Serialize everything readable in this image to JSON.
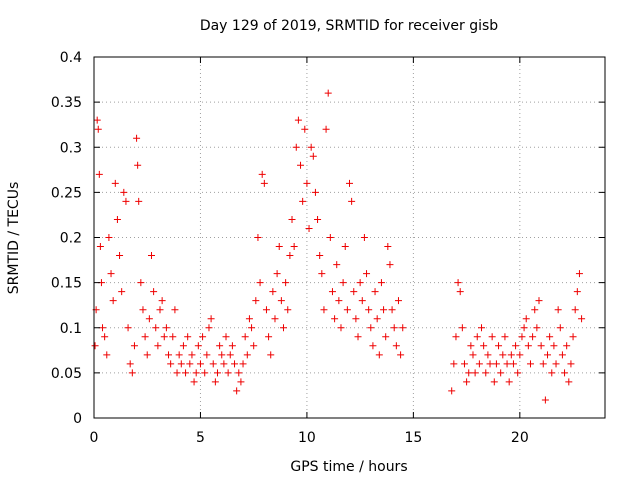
{
  "chart_data": {
    "type": "scatter",
    "title": "Day 129 of 2019, SRMTID for receiver gisb",
    "xlabel": "GPS time / hours",
    "ylabel": "SRMTID / TECUs",
    "xlim": [
      0,
      24
    ],
    "ylim": [
      0,
      0.4
    ],
    "x_ticks": [
      0,
      5,
      10,
      15,
      20
    ],
    "x_tick_labels": [
      "0",
      "5",
      "10",
      "15",
      "20"
    ],
    "y_ticks": [
      0,
      0.05,
      0.1,
      0.15,
      0.2,
      0.25,
      0.3,
      0.35,
      0.4
    ],
    "y_tick_labels": [
      "0",
      "0.05",
      "0.1",
      "0.15",
      "0.2",
      "0.25",
      "0.3",
      "0.35",
      "0.4"
    ],
    "grid": true,
    "marker": "plus",
    "color": "#ee0000",
    "data_gap_hours": [
      14.5,
      16.8
    ],
    "series": [
      {
        "name": "SRMTID",
        "points": [
          [
            0.05,
            0.08
          ],
          [
            0.1,
            0.12
          ],
          [
            0.15,
            0.33
          ],
          [
            0.2,
            0.32
          ],
          [
            0.25,
            0.27
          ],
          [
            0.3,
            0.19
          ],
          [
            0.35,
            0.15
          ],
          [
            0.4,
            0.1
          ],
          [
            0.5,
            0.09
          ],
          [
            0.6,
            0.07
          ],
          [
            0.7,
            0.2
          ],
          [
            0.8,
            0.16
          ],
          [
            0.9,
            0.13
          ],
          [
            1.0,
            0.26
          ],
          [
            1.1,
            0.22
          ],
          [
            1.2,
            0.18
          ],
          [
            1.3,
            0.14
          ],
          [
            1.4,
            0.25
          ],
          [
            1.5,
            0.24
          ],
          [
            1.6,
            0.1
          ],
          [
            1.7,
            0.06
          ],
          [
            1.8,
            0.05
          ],
          [
            1.9,
            0.08
          ],
          [
            2.0,
            0.31
          ],
          [
            2.05,
            0.28
          ],
          [
            2.1,
            0.24
          ],
          [
            2.2,
            0.15
          ],
          [
            2.3,
            0.12
          ],
          [
            2.4,
            0.09
          ],
          [
            2.5,
            0.07
          ],
          [
            2.6,
            0.11
          ],
          [
            2.7,
            0.18
          ],
          [
            2.8,
            0.14
          ],
          [
            2.9,
            0.1
          ],
          [
            3.0,
            0.08
          ],
          [
            3.1,
            0.12
          ],
          [
            3.2,
            0.13
          ],
          [
            3.3,
            0.09
          ],
          [
            3.4,
            0.1
          ],
          [
            3.5,
            0.07
          ],
          [
            3.6,
            0.06
          ],
          [
            3.7,
            0.09
          ],
          [
            3.8,
            0.12
          ],
          [
            3.9,
            0.05
          ],
          [
            4.0,
            0.07
          ],
          [
            4.1,
            0.06
          ],
          [
            4.2,
            0.08
          ],
          [
            4.3,
            0.05
          ],
          [
            4.4,
            0.09
          ],
          [
            4.5,
            0.06
          ],
          [
            4.6,
            0.07
          ],
          [
            4.7,
            0.04
          ],
          [
            4.8,
            0.05
          ],
          [
            4.9,
            0.08
          ],
          [
            5.0,
            0.06
          ],
          [
            5.1,
            0.09
          ],
          [
            5.2,
            0.05
          ],
          [
            5.3,
            0.07
          ],
          [
            5.4,
            0.1
          ],
          [
            5.5,
            0.11
          ],
          [
            5.6,
            0.06
          ],
          [
            5.7,
            0.04
          ],
          [
            5.8,
            0.05
          ],
          [
            5.9,
            0.08
          ],
          [
            6.0,
            0.07
          ],
          [
            6.1,
            0.06
          ],
          [
            6.2,
            0.09
          ],
          [
            6.3,
            0.05
          ],
          [
            6.4,
            0.07
          ],
          [
            6.5,
            0.08
          ],
          [
            6.6,
            0.06
          ],
          [
            6.7,
            0.03
          ],
          [
            6.8,
            0.05
          ],
          [
            6.9,
            0.04
          ],
          [
            7.0,
            0.06
          ],
          [
            7.1,
            0.09
          ],
          [
            7.2,
            0.07
          ],
          [
            7.3,
            0.11
          ],
          [
            7.4,
            0.1
          ],
          [
            7.5,
            0.08
          ],
          [
            7.6,
            0.13
          ],
          [
            7.7,
            0.2
          ],
          [
            7.8,
            0.15
          ],
          [
            7.9,
            0.27
          ],
          [
            8.0,
            0.26
          ],
          [
            8.1,
            0.12
          ],
          [
            8.2,
            0.09
          ],
          [
            8.3,
            0.07
          ],
          [
            8.4,
            0.14
          ],
          [
            8.5,
            0.11
          ],
          [
            8.6,
            0.16
          ],
          [
            8.7,
            0.19
          ],
          [
            8.8,
            0.13
          ],
          [
            8.9,
            0.1
          ],
          [
            9.0,
            0.15
          ],
          [
            9.1,
            0.12
          ],
          [
            9.2,
            0.18
          ],
          [
            9.3,
            0.22
          ],
          [
            9.4,
            0.19
          ],
          [
            9.5,
            0.3
          ],
          [
            9.6,
            0.33
          ],
          [
            9.7,
            0.28
          ],
          [
            9.8,
            0.24
          ],
          [
            9.9,
            0.32
          ],
          [
            10.0,
            0.26
          ],
          [
            10.1,
            0.21
          ],
          [
            10.2,
            0.3
          ],
          [
            10.3,
            0.29
          ],
          [
            10.4,
            0.25
          ],
          [
            10.5,
            0.22
          ],
          [
            10.6,
            0.18
          ],
          [
            10.7,
            0.16
          ],
          [
            10.8,
            0.12
          ],
          [
            10.9,
            0.32
          ],
          [
            11.0,
            0.36
          ],
          [
            11.1,
            0.2
          ],
          [
            11.2,
            0.14
          ],
          [
            11.3,
            0.11
          ],
          [
            11.4,
            0.17
          ],
          [
            11.5,
            0.13
          ],
          [
            11.6,
            0.1
          ],
          [
            11.7,
            0.15
          ],
          [
            11.8,
            0.19
          ],
          [
            11.9,
            0.12
          ],
          [
            12.0,
            0.26
          ],
          [
            12.1,
            0.24
          ],
          [
            12.2,
            0.14
          ],
          [
            12.3,
            0.11
          ],
          [
            12.4,
            0.09
          ],
          [
            12.5,
            0.15
          ],
          [
            12.6,
            0.13
          ],
          [
            12.7,
            0.2
          ],
          [
            12.8,
            0.16
          ],
          [
            12.9,
            0.12
          ],
          [
            13.0,
            0.1
          ],
          [
            13.1,
            0.08
          ],
          [
            13.2,
            0.14
          ],
          [
            13.3,
            0.11
          ],
          [
            13.4,
            0.07
          ],
          [
            13.5,
            0.15
          ],
          [
            13.6,
            0.12
          ],
          [
            13.7,
            0.09
          ],
          [
            13.8,
            0.19
          ],
          [
            13.9,
            0.17
          ],
          [
            14.0,
            0.12
          ],
          [
            14.1,
            0.1
          ],
          [
            14.2,
            0.08
          ],
          [
            14.3,
            0.13
          ],
          [
            14.4,
            0.07
          ],
          [
            14.5,
            0.1
          ],
          [
            16.8,
            0.03
          ],
          [
            16.9,
            0.06
          ],
          [
            17.0,
            0.09
          ],
          [
            17.1,
            0.15
          ],
          [
            17.2,
            0.14
          ],
          [
            17.3,
            0.1
          ],
          [
            17.4,
            0.06
          ],
          [
            17.5,
            0.04
          ],
          [
            17.6,
            0.05
          ],
          [
            17.7,
            0.08
          ],
          [
            17.8,
            0.07
          ],
          [
            17.9,
            0.05
          ],
          [
            18.0,
            0.09
          ],
          [
            18.1,
            0.06
          ],
          [
            18.2,
            0.1
          ],
          [
            18.3,
            0.08
          ],
          [
            18.4,
            0.05
          ],
          [
            18.5,
            0.07
          ],
          [
            18.6,
            0.06
          ],
          [
            18.7,
            0.09
          ],
          [
            18.8,
            0.04
          ],
          [
            18.9,
            0.06
          ],
          [
            19.0,
            0.08
          ],
          [
            19.1,
            0.05
          ],
          [
            19.2,
            0.07
          ],
          [
            19.3,
            0.09
          ],
          [
            19.4,
            0.06
          ],
          [
            19.5,
            0.04
          ],
          [
            19.6,
            0.07
          ],
          [
            19.7,
            0.06
          ],
          [
            19.8,
            0.08
          ],
          [
            19.9,
            0.05
          ],
          [
            20.0,
            0.07
          ],
          [
            20.1,
            0.09
          ],
          [
            20.2,
            0.1
          ],
          [
            20.3,
            0.11
          ],
          [
            20.4,
            0.08
          ],
          [
            20.5,
            0.06
          ],
          [
            20.6,
            0.09
          ],
          [
            20.7,
            0.12
          ],
          [
            20.8,
            0.1
          ],
          [
            20.9,
            0.13
          ],
          [
            21.0,
            0.08
          ],
          [
            21.1,
            0.06
          ],
          [
            21.2,
            0.02
          ],
          [
            21.3,
            0.07
          ],
          [
            21.4,
            0.09
          ],
          [
            21.5,
            0.05
          ],
          [
            21.6,
            0.08
          ],
          [
            21.7,
            0.06
          ],
          [
            21.8,
            0.12
          ],
          [
            21.9,
            0.1
          ],
          [
            22.0,
            0.07
          ],
          [
            22.1,
            0.05
          ],
          [
            22.2,
            0.08
          ],
          [
            22.3,
            0.04
          ],
          [
            22.4,
            0.06
          ],
          [
            22.5,
            0.09
          ],
          [
            22.6,
            0.12
          ],
          [
            22.7,
            0.14
          ],
          [
            22.8,
            0.16
          ],
          [
            22.9,
            0.11
          ]
        ]
      }
    ]
  }
}
